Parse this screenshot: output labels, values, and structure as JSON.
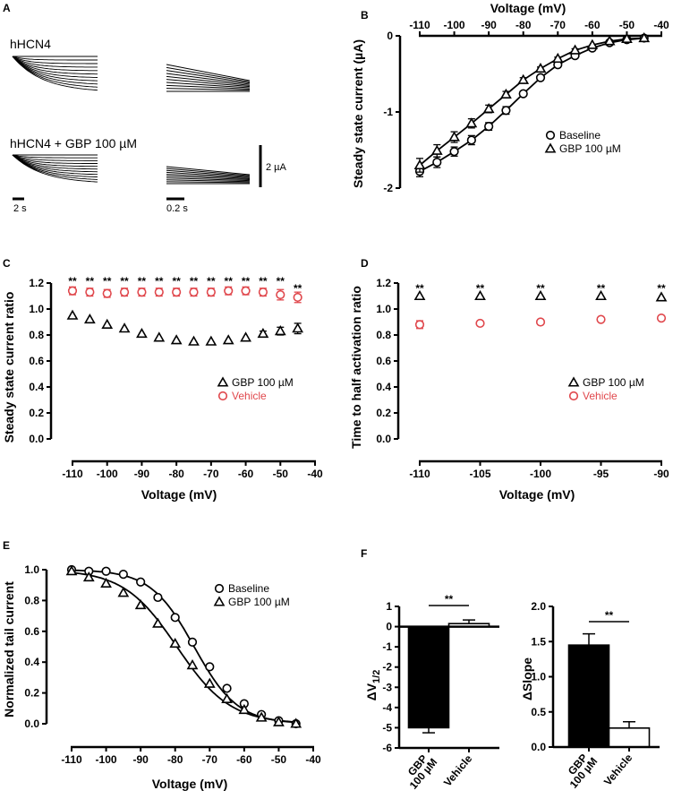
{
  "panel_labels": [
    "A",
    "B",
    "C",
    "D",
    "E",
    "F"
  ],
  "panel_a": {
    "label_top": "hHCN4",
    "label_bottom": "hHCN4 + GBP 100 µM",
    "scale_current": "2 µA",
    "scale_time_left": "2 s",
    "scale_time_right": "0.2 s"
  },
  "chart_data": [
    {
      "id": "B",
      "type": "line",
      "title": "",
      "xlabel": "Voltage (mV)",
      "ylabel": "Steady state current (µA)",
      "xlim": [
        -110,
        -40
      ],
      "ylim": [
        -2,
        0
      ],
      "xticks": [
        "-110",
        "-100",
        "-90",
        "-80",
        "-70",
        "-60",
        "-50",
        "-40"
      ],
      "yticks": [
        "0",
        "-1",
        "-2"
      ],
      "legend_position": "right",
      "x": [
        -110,
        -105,
        -100,
        -95,
        -90,
        -85,
        -80,
        -75,
        -70,
        -65,
        -60,
        -55,
        -50,
        -45
      ],
      "series": [
        {
          "name": "Baseline",
          "marker": "circle",
          "color": "#000000",
          "values": [
            -1.78,
            -1.66,
            -1.52,
            -1.37,
            -1.19,
            -0.98,
            -0.76,
            -0.55,
            -0.38,
            -0.26,
            -0.16,
            -0.09,
            -0.05,
            -0.03
          ],
          "errors": [
            0.07,
            0.07,
            0.06,
            0.06,
            0.05,
            0.05,
            0.03,
            0.03,
            0.02,
            0.02,
            0.02,
            0.01,
            0.01,
            0.01
          ]
        },
        {
          "name": "GBP 100 µM",
          "marker": "triangle",
          "color": "#000000",
          "values": [
            -1.7,
            -1.51,
            -1.33,
            -1.15,
            -0.96,
            -0.77,
            -0.58,
            -0.43,
            -0.3,
            -0.19,
            -0.12,
            -0.07,
            -0.04,
            -0.03
          ],
          "errors": [
            0.09,
            0.08,
            0.07,
            0.06,
            0.05,
            0.04,
            0.03,
            0.02,
            0.02,
            0.02,
            0.01,
            0.01,
            0.01,
            0.01
          ]
        }
      ]
    },
    {
      "id": "C",
      "type": "scatter",
      "title": "",
      "xlabel": "Voltage (mV)",
      "ylabel": "Steady state current ratio",
      "xlim": [
        -110,
        -40
      ],
      "ylim": [
        0,
        1.2
      ],
      "xticks": [
        "-110",
        "-100",
        "-90",
        "-80",
        "-70",
        "-60",
        "-50",
        "-40"
      ],
      "yticks": [
        "0.0",
        "0.2",
        "0.4",
        "0.6",
        "0.8",
        "1.0",
        "1.2"
      ],
      "legend_position": "right",
      "x": [
        -110,
        -105,
        -100,
        -95,
        -90,
        -85,
        -80,
        -75,
        -70,
        -65,
        -60,
        -55,
        -50,
        -45
      ],
      "annotations": [
        "**",
        "**",
        "**",
        "**",
        "**",
        "**",
        "**",
        "**",
        "**",
        "**",
        "**",
        "**",
        "**",
        "**"
      ],
      "series": [
        {
          "name": "GBP 100 µM",
          "marker": "triangle",
          "color": "#000000",
          "values": [
            0.95,
            0.92,
            0.88,
            0.85,
            0.81,
            0.78,
            0.76,
            0.75,
            0.75,
            0.76,
            0.78,
            0.81,
            0.83,
            0.85
          ],
          "errors": [
            0.01,
            0.01,
            0.01,
            0.01,
            0.01,
            0.01,
            0.01,
            0.01,
            0.01,
            0.01,
            0.01,
            0.02,
            0.03,
            0.04
          ]
        },
        {
          "name": "Vehicle",
          "marker": "circle",
          "color": "#e0474c",
          "values": [
            1.14,
            1.13,
            1.12,
            1.13,
            1.13,
            1.13,
            1.13,
            1.13,
            1.13,
            1.14,
            1.14,
            1.13,
            1.11,
            1.09
          ],
          "errors": [
            0.03,
            0.03,
            0.03,
            0.03,
            0.03,
            0.03,
            0.03,
            0.03,
            0.03,
            0.03,
            0.03,
            0.03,
            0.04,
            0.04
          ]
        }
      ]
    },
    {
      "id": "D",
      "type": "scatter",
      "title": "",
      "xlabel": "Voltage (mV)",
      "ylabel": "Time to half activation ratio",
      "xlim": [
        -110,
        -90
      ],
      "ylim": [
        0,
        1.2
      ],
      "xticks": [
        "-110",
        "-105",
        "-100",
        "-95",
        "-90"
      ],
      "yticks": [
        "0.0",
        "0.2",
        "0.4",
        "0.6",
        "0.8",
        "1.0",
        "1.2"
      ],
      "legend_position": "right",
      "x": [
        -110,
        -105,
        -100,
        -95,
        -90
      ],
      "annotations": [
        "**",
        "**",
        "**",
        "**",
        "**"
      ],
      "series": [
        {
          "name": "GBP 100 µM",
          "marker": "triangle",
          "color": "#000000",
          "values": [
            1.1,
            1.1,
            1.1,
            1.1,
            1.09
          ],
          "errors": [
            0.01,
            0.01,
            0.01,
            0.01,
            0.01
          ]
        },
        {
          "name": "Vehicle",
          "marker": "circle",
          "color": "#e0474c",
          "values": [
            0.88,
            0.89,
            0.9,
            0.92,
            0.93
          ],
          "errors": [
            0.03,
            0.01,
            0.01,
            0.01,
            0.01
          ]
        }
      ]
    },
    {
      "id": "E",
      "type": "line",
      "title": "",
      "xlabel": "Voltage (mV)",
      "ylabel": "Normalized tail current",
      "xlim": [
        -110,
        -40
      ],
      "ylim": [
        0,
        1.0
      ],
      "xticks": [
        "-110",
        "-100",
        "-90",
        "-80",
        "-70",
        "-60",
        "-50",
        "-40"
      ],
      "yticks": [
        "0.0",
        "0.2",
        "0.4",
        "0.6",
        "0.8",
        "1.0"
      ],
      "legend_position": "top-right",
      "x": [
        -110,
        -105,
        -100,
        -95,
        -90,
        -85,
        -80,
        -75,
        -70,
        -65,
        -60,
        -55,
        -50,
        -45
      ],
      "series": [
        {
          "name": "Baseline",
          "marker": "circle",
          "color": "#000000",
          "values": [
            1.0,
            0.99,
            0.99,
            0.97,
            0.92,
            0.82,
            0.69,
            0.53,
            0.37,
            0.23,
            0.13,
            0.06,
            0.02,
            0.0
          ],
          "fit": {
            "v_half": -74.5,
            "slope": 6.3
          }
        },
        {
          "name": "GBP 100 µM",
          "marker": "triangle",
          "color": "#000000",
          "values": [
            0.99,
            0.95,
            0.91,
            0.85,
            0.77,
            0.65,
            0.52,
            0.38,
            0.26,
            0.16,
            0.09,
            0.04,
            0.01,
            0.0
          ],
          "fit": {
            "v_half": -79.5,
            "slope": 7.7
          }
        }
      ]
    },
    {
      "id": "F-left",
      "type": "bar",
      "title": "",
      "xlabel": "",
      "ylabel": "ΔV1/2",
      "ylabel_main": "ΔV",
      "ylabel_sub": "1/2",
      "ylim": [
        -6,
        1
      ],
      "yticks": [
        "1",
        "0",
        "-1",
        "-2",
        "-3",
        "-4",
        "-5",
        "-6"
      ],
      "categories": [
        "GBP 100 µM",
        "Vehicle"
      ],
      "category_lines": [
        [
          "GBP",
          "100 µM"
        ],
        [
          "Vehicle"
        ]
      ],
      "values": [
        -5.0,
        0.15
      ],
      "errors": [
        0.25,
        0.18
      ],
      "fills": [
        "#000000",
        "#ffffff"
      ],
      "significance": "**"
    },
    {
      "id": "F-right",
      "type": "bar",
      "title": "",
      "xlabel": "",
      "ylabel": "ΔSlope",
      "ylim": [
        0,
        2.0
      ],
      "yticks": [
        "2.0",
        "1.5",
        "1.0",
        "0.5",
        "0.0"
      ],
      "categories": [
        "GBP 100 µM",
        "Vehicle"
      ],
      "category_lines": [
        [
          "GBP",
          "100 µM"
        ],
        [
          "Vehicle"
        ]
      ],
      "values": [
        1.45,
        0.27
      ],
      "errors": [
        0.16,
        0.09
      ],
      "fills": [
        "#000000",
        "#ffffff"
      ],
      "significance": "**"
    }
  ]
}
